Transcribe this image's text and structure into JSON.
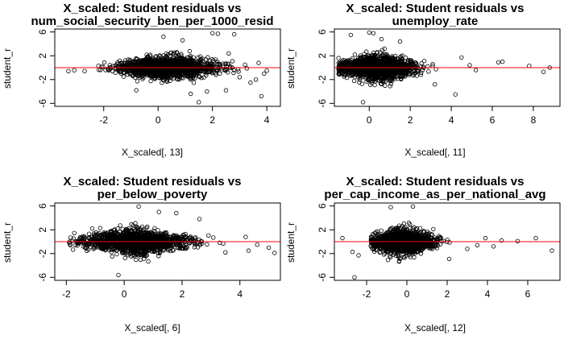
{
  "panels": [
    {
      "title_line1": "X_scaled: Student residuals vs",
      "title_line2": "num_social_security_ben_per_1000_resid",
      "xlabel": "X_scaled[, 13]",
      "ylabel": "student_r",
      "xticks": [
        "-2",
        "0",
        "2",
        "4"
      ],
      "yticks": [
        "-6",
        "-2",
        "2",
        "6"
      ]
    },
    {
      "title_line1": "X_scaled: Student residuals vs",
      "title_line2": "unemploy_rate",
      "xlabel": "X_scaled[, 11]",
      "ylabel": "student_r",
      "xticks": [
        "0",
        "2",
        "4",
        "6",
        "8"
      ],
      "yticks": [
        "-6",
        "-2",
        "2",
        "6"
      ]
    },
    {
      "title_line1": "X_scaled: Student residuals vs",
      "title_line2": "per_below_poverty",
      "xlabel": "X_scaled[, 6]",
      "ylabel": "student_r",
      "xticks": [
        "-2",
        "0",
        "2",
        "4"
      ],
      "yticks": [
        "-6",
        "-2",
        "2",
        "6"
      ]
    },
    {
      "title_line1": "X_scaled: Student residuals vs",
      "title_line2": "per_cap_income_as_per_national_avg",
      "xlabel": "X_scaled[, 12]",
      "ylabel": "student_r",
      "xticks": [
        "-2",
        "0",
        "2",
        "4",
        "6"
      ],
      "yticks": [
        "-6",
        "-2",
        "2",
        "6"
      ]
    }
  ],
  "chart_data": [
    {
      "type": "scatter",
      "title": "X_scaled: Student residuals vs num_social_security_ben_per_1000_resid",
      "xlabel": "X_scaled[, 13]",
      "ylabel": "student_r",
      "xlim": [
        -3.8,
        4.5
      ],
      "ylim": [
        -6.5,
        6.5
      ],
      "hline": {
        "y": 0,
        "color": "#ff0000"
      },
      "marker": "open-circle",
      "series": [
        {
          "cluster": {
            "x_range": [
              -3.2,
              3.5
            ],
            "x_mean": 0.3,
            "x_sd": 0.9,
            "y_sd": 1.0,
            "count": 1500
          },
          "x": [
            -3.3,
            3.2,
            3.6,
            3.8,
            3.9,
            1.5,
            2.2,
            2.0,
            2.8,
            2.5,
            0.2,
            -0.8,
            3.0,
            3.4,
            1.8,
            0.9,
            2.6,
            3.7,
            4.0,
            1.2
          ],
          "y": [
            -0.6,
            0.5,
            -2.0,
            -4.8,
            -1.0,
            -5.8,
            5.7,
            5.8,
            5.6,
            -3.8,
            5.2,
            -3.8,
            -1.6,
            -2.5,
            -4.0,
            4.6,
            2.4,
            0.8,
            -0.5,
            -4.4
          ]
        }
      ]
    },
    {
      "type": "scatter",
      "title": "X_scaled: Student residuals vs unemploy_rate",
      "xlabel": "X_scaled[, 11]",
      "ylabel": "student_r",
      "xlim": [
        -1.7,
        9.3
      ],
      "ylim": [
        -6.5,
        6.5
      ],
      "hline": {
        "y": 0,
        "color": "#ff0000"
      },
      "marker": "open-circle",
      "series": [
        {
          "cluster": {
            "x_range": [
              -1.5,
              4.0
            ],
            "x_mean": 0.4,
            "x_sd": 0.9,
            "y_sd": 1.1,
            "count": 1500
          },
          "x": [
            0.0,
            0.2,
            -0.9,
            -0.3,
            4.2,
            4.5,
            4.9,
            5.2,
            6.3,
            6.5,
            7.8,
            8.5,
            8.8,
            3.2,
            1.5,
            0.6
          ],
          "y": [
            5.9,
            5.8,
            5.5,
            -5.8,
            -4.5,
            1.7,
            0.4,
            -0.4,
            0.9,
            1.0,
            0.3,
            -0.7,
            0.0,
            -2.8,
            4.4,
            4.8
          ]
        }
      ]
    },
    {
      "type": "scatter",
      "title": "X_scaled: Student residuals vs per_below_poverty",
      "xlabel": "X_scaled[, 6]",
      "ylabel": "student_r",
      "xlim": [
        -2.4,
        5.4
      ],
      "ylim": [
        -6.5,
        6.5
      ],
      "hline": {
        "y": 0,
        "color": "#ff0000"
      },
      "marker": "open-circle",
      "series": [
        {
          "cluster": {
            "x_range": [
              -1.9,
              4.0
            ],
            "x_mean": 0.4,
            "x_sd": 0.9,
            "y_sd": 1.1,
            "count": 1500
          },
          "x": [
            -1.9,
            -0.2,
            0.5,
            4.2,
            4.3,
            4.6,
            5.0,
            5.2,
            3.5,
            2.6,
            1.2,
            1.8
          ],
          "y": [
            -0.2,
            -5.6,
            5.9,
            0.8,
            -1.5,
            -0.5,
            -1.0,
            -1.9,
            -1.8,
            3.8,
            5.0,
            4.8
          ]
        }
      ]
    },
    {
      "type": "scatter",
      "title": "X_scaled: Student residuals vs per_cap_income_as_per_national_avg",
      "xlabel": "X_scaled[, 12]",
      "ylabel": "student_r",
      "xlim": [
        -3.6,
        7.6
      ],
      "ylim": [
        -6.5,
        6.5
      ],
      "hline": {
        "y": 0,
        "color": "#ff0000"
      },
      "marker": "open-circle",
      "series": [
        {
          "cluster": {
            "x_range": [
              -1.8,
              3.0
            ],
            "x_mean": -0.2,
            "x_sd": 0.75,
            "y_sd": 1.1,
            "count": 1500
          },
          "x": [
            -3.2,
            -2.7,
            -2.6,
            -2.4,
            3.0,
            3.5,
            3.9,
            4.3,
            4.7,
            5.5,
            6.4,
            7.2,
            2.1,
            -0.8,
            0.3
          ],
          "y": [
            0.6,
            -1.7,
            -6.0,
            -2.3,
            -1.2,
            -0.6,
            0.6,
            -0.8,
            0.2,
            0.1,
            0.6,
            -1.5,
            -2.9,
            5.8,
            5.9
          ]
        }
      ]
    }
  ]
}
